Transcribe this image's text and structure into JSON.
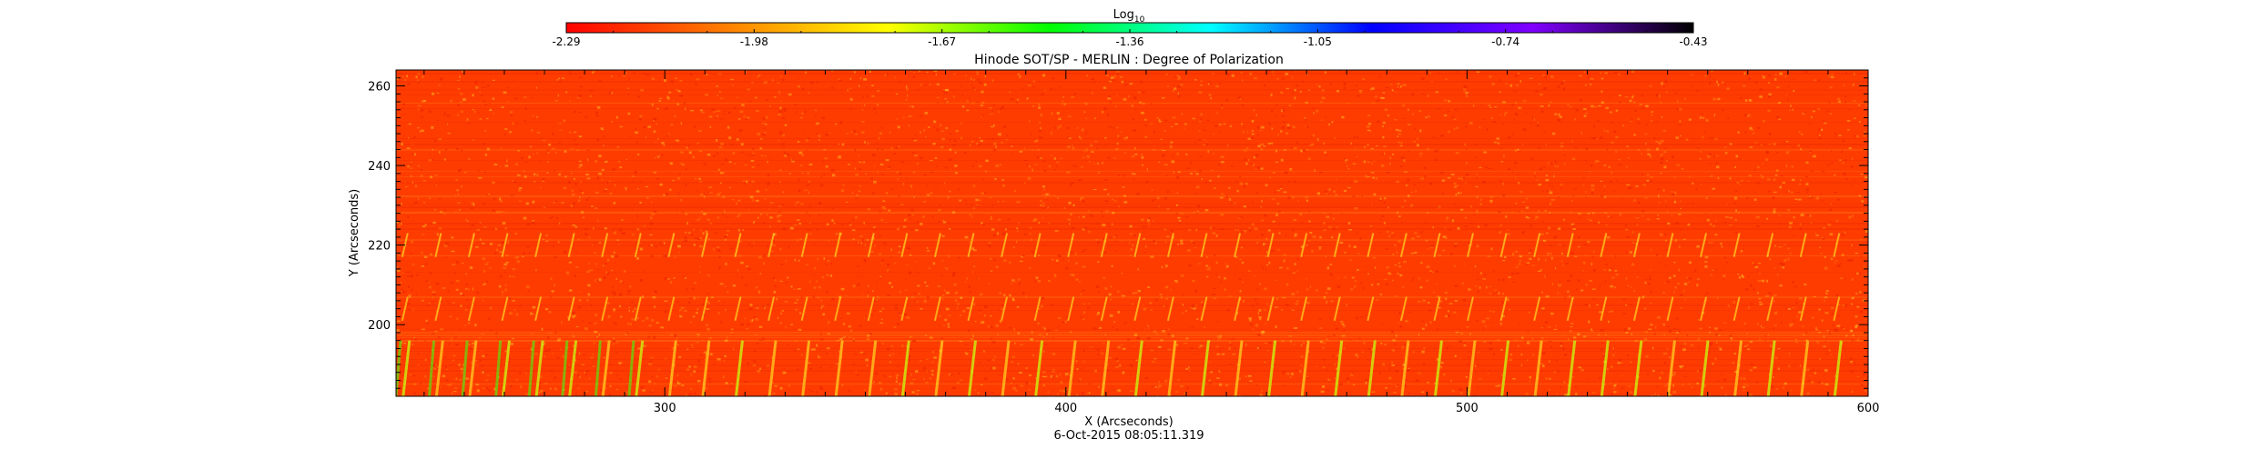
{
  "chart_data": {
    "type": "heatmap",
    "title": "Hinode SOT/SP - MERLIN : Degree of Polarization",
    "xlabel": "X (Arcseconds)",
    "ylabel": "Y (Arcseconds)",
    "timestamp": "6-Oct-2015 08:05:11.319",
    "xlim": [
      233,
      600
    ],
    "ylim": [
      182,
      264
    ],
    "x_ticks": [
      300,
      400,
      500,
      600
    ],
    "y_ticks": [
      200,
      220,
      240,
      260
    ],
    "x_tick_labels": [
      "300",
      "400",
      "500",
      "600"
    ],
    "y_tick_labels": [
      "200",
      "220",
      "240",
      "260"
    ],
    "grid": false,
    "colorbar": {
      "label_base": "Log",
      "label_sub": "10",
      "placement": "top",
      "range": [
        -2.29,
        -0.43
      ],
      "tick_labels": [
        "-2.29",
        "-1.98",
        "-1.67",
        "-1.36",
        "-1.05",
        "-0.74",
        "-0.43"
      ],
      "colors": [
        "#ff0000",
        "#ff8000",
        "#ffff00",
        "#00ff00",
        "#00ffff",
        "#0000ff",
        "#8000ff",
        "#000000"
      ]
    },
    "dominant_value": -2.1,
    "features": {
      "background_color": "#ff3c00",
      "speckle_colors": [
        "#ff7a10",
        "#ffb020",
        "#e82000"
      ],
      "streak_colors": [
        "#ffd020",
        "#c8ff10",
        "#40ff10"
      ],
      "streak_rows_y": [
        220,
        204,
        186
      ],
      "streak_spacing_x": 8.3
    }
  }
}
